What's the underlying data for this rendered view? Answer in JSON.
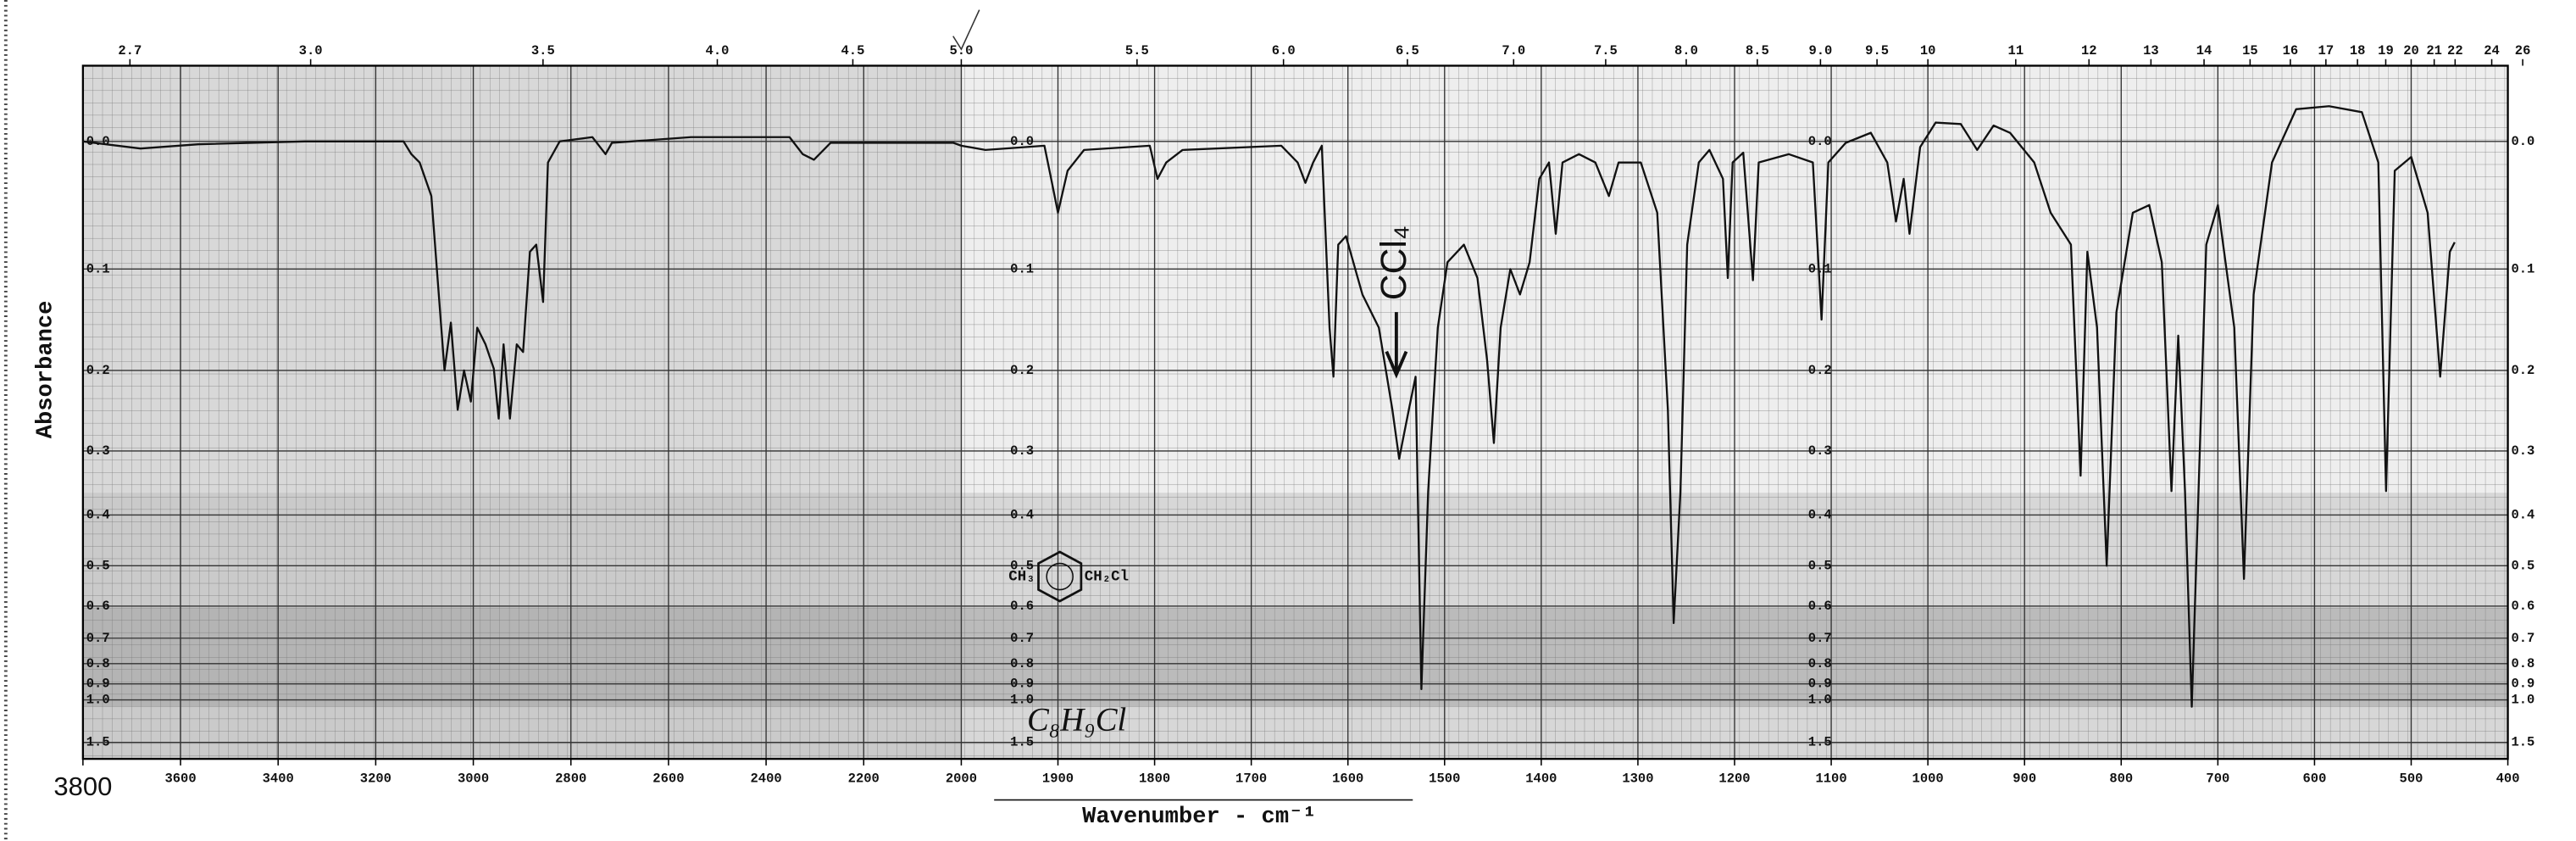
{
  "chart_data": {
    "type": "line",
    "y_label": "Absorbance",
    "x_label": "Wavenumber - cm⁻¹",
    "color": "#111111",
    "x_break": 2000,
    "y_scale": "transmittance",
    "xlim": [
      3800,
      400
    ],
    "ylim": [
      2.3,
      -0.05
    ],
    "xticks": [
      3800,
      3600,
      3400,
      3200,
      3000,
      2800,
      2600,
      2400,
      2200,
      2000,
      1900,
      1800,
      1700,
      1600,
      1500,
      1400,
      1300,
      1200,
      1100,
      1000,
      900,
      800,
      700,
      600,
      500,
      400
    ],
    "x2ticks": [
      2.7,
      {
        "value": 3,
        "label": "3.0"
      },
      3.5,
      {
        "value": 4,
        "label": "4.0"
      },
      4.5,
      {
        "value": 5,
        "label": "5.0"
      },
      5.5,
      {
        "value": 6,
        "label": "6.0"
      },
      6.5,
      {
        "value": 7,
        "label": "7.0"
      },
      7.5,
      {
        "value": 8,
        "label": "8.0"
      },
      8.5,
      {
        "value": 9,
        "label": "9.0"
      },
      9.5,
      10,
      11,
      12,
      13,
      14,
      15,
      16,
      17,
      18,
      19,
      20,
      21,
      22,
      24,
      26
    ],
    "yticks": [
      {
        "value": 0,
        "label": "0.0"
      },
      0.1,
      0.2,
      0.3,
      0.4,
      0.5,
      0.6,
      0.7,
      0.8,
      0.9,
      {
        "value": 1,
        "label": "1.0"
      },
      1.5
    ],
    "grid": true,
    "x": [
      3800,
      3682,
      3564,
      3345,
      3143,
      3127,
      3110,
      3086,
      3059,
      3046,
      3032,
      3019,
      3005,
      2992,
      2975,
      2958,
      2948,
      2938,
      2925,
      2911,
      2898,
      2884,
      2871,
      2857,
      2847,
      2823,
      2756,
      2729,
      2716,
      2554,
      2352,
      2325,
      2302,
      2268,
      2016,
      2000,
      1975,
      1914,
      1907,
      1900,
      1890,
      1873,
      1805,
      1797,
      1788,
      1771,
      1669,
      1652,
      1644,
      1636,
      1627,
      1619,
      1615,
      1610,
      1602,
      1585,
      1568,
      1554,
      1547,
      1537,
      1530,
      1524,
      1517,
      1507,
      1497,
      1480,
      1466,
      1456,
      1449,
      1442,
      1432,
      1422,
      1412,
      1402,
      1392,
      1385,
      1378,
      1361,
      1344,
      1330,
      1320,
      1297,
      1280,
      1269,
      1263,
      1256,
      1249,
      1237,
      1226,
      1212,
      1207,
      1202,
      1191,
      1181,
      1175,
      1144,
      1119,
      1110,
      1103,
      1085,
      1059,
      1042,
      1033,
      1025,
      1019,
      1008,
      992,
      966,
      949,
      932,
      915,
      890,
      873,
      852,
      842,
      835,
      825,
      815,
      805,
      788,
      771,
      758,
      748,
      741,
      734,
      727,
      720,
      712,
      700,
      683,
      673,
      663,
      644,
      619,
      585,
      551,
      534,
      526,
      517,
      500,
      483,
      470,
      460,
      455
    ],
    "values": [
      0,
      0.005,
      0.002,
      0,
      0,
      0.009,
      0.015,
      0.04,
      0.2,
      0.15,
      0.246,
      0.2,
      0.236,
      0.155,
      0.172,
      0.198,
      0.257,
      0.172,
      0.257,
      0.172,
      0.18,
      0.085,
      0.079,
      0.13,
      0.015,
      0,
      -0.003,
      0.009,
      0.001,
      -0.003,
      -0.003,
      0.009,
      0.013,
      0.001,
      0.001,
      0.003,
      0.006,
      0.003,
      0.027,
      0.053,
      0.021,
      0.006,
      0.003,
      0.027,
      0.015,
      0.006,
      0.003,
      0.015,
      0.03,
      0.015,
      0.003,
      0.155,
      0.207,
      0.079,
      0.072,
      0.123,
      0.155,
      0.246,
      0.311,
      0.246,
      0.207,
      0.93,
      0.361,
      0.155,
      0.094,
      0.079,
      0.108,
      0.189,
      0.289,
      0.155,
      0.1,
      0.123,
      0.094,
      0.027,
      0.015,
      0.07,
      0.015,
      0.009,
      0.015,
      0.04,
      0.015,
      0.015,
      0.053,
      0.246,
      0.65,
      0.361,
      0.079,
      0.015,
      0.006,
      0.027,
      0.108,
      0.015,
      0.008,
      0.11,
      0.015,
      0.009,
      0.015,
      0.147,
      0.015,
      0.001,
      -0.006,
      0.015,
      0.06,
      0.027,
      0.07,
      0.004,
      -0.013,
      -0.012,
      0.006,
      -0.011,
      -0.006,
      0.015,
      0.053,
      0.079,
      0.336,
      0.085,
      0.155,
      0.5,
      0.14,
      0.053,
      0.047,
      0.094,
      0.36,
      0.163,
      0.36,
      1.05,
      0.36,
      0.079,
      0.047,
      0.155,
      0.53,
      0.123,
      0.015,
      -0.022,
      -0.024,
      -0.02,
      0.015,
      0.36,
      0.021,
      0.011,
      0.053,
      0.207,
      0.085,
      0.077
    ],
    "annotations": {
      "solvent": "CCl₄",
      "structure_left": "CH₃",
      "structure_right": "CH₂Cl",
      "formula": "C₈H₉Cl"
    }
  }
}
